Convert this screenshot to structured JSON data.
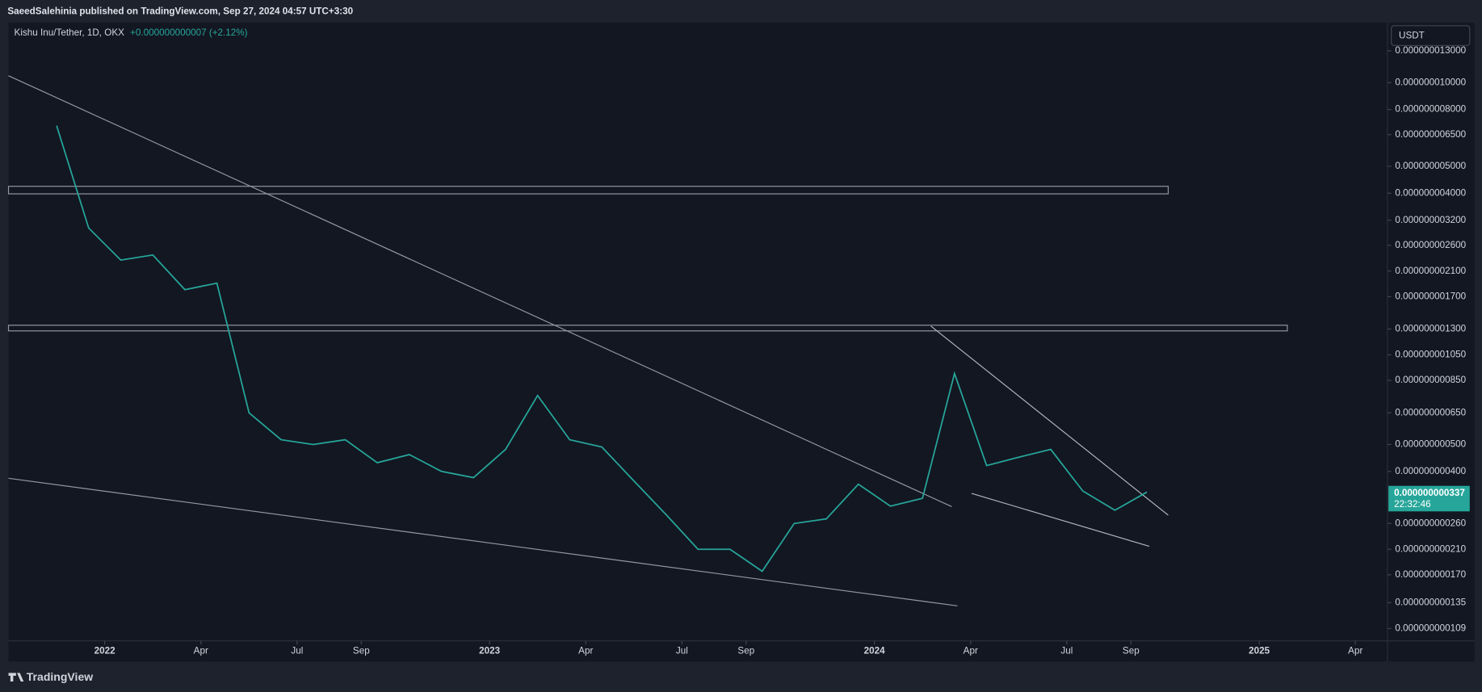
{
  "header": {
    "publisher": "SaeedSalehinia published on TradingView.com, Sep 27, 2024 04:57 UTC+3:30"
  },
  "footer": {
    "brand": "TradingView"
  },
  "chart_data": {
    "type": "line",
    "title": "Kishu Inu/Tether, 1D, OKX",
    "subtitle": "+0.000000000007 (+2.12%)",
    "currency": "USDT",
    "color": "#26a69a",
    "log_scale": true,
    "grid": false,
    "price_tag": {
      "label": "0.000000000337",
      "countdown": "22:32:46"
    },
    "x": [
      "2021-11",
      "2021-12",
      "2022-01",
      "2022-02",
      "2022-03",
      "2022-04",
      "2022-05",
      "2022-06",
      "2022-07",
      "2022-08",
      "2022-09",
      "2022-10",
      "2022-11",
      "2022-12",
      "2023-01",
      "2023-02",
      "2023-03",
      "2023-04",
      "2023-05",
      "2023-06",
      "2023-07",
      "2023-08",
      "2023-09",
      "2023-10",
      "2023-11",
      "2023-12",
      "2024-01",
      "2024-02",
      "2024-03",
      "2024-04",
      "2024-05",
      "2024-06",
      "2024-07",
      "2024-08",
      "2024-09"
    ],
    "values": [
      7e-09,
      3e-09,
      2.3e-09,
      2.4e-09,
      1.8e-09,
      1.9e-09,
      6.5e-10,
      5.2e-10,
      5e-10,
      5.2e-10,
      4.3e-10,
      4.6e-10,
      4e-10,
      3.8e-10,
      4.8e-10,
      7.5e-10,
      5.2e-10,
      4.9e-10,
      3.7e-10,
      2.8e-10,
      2.1e-10,
      2.1e-10,
      1.75e-10,
      2.6e-10,
      2.7e-10,
      3.6e-10,
      3e-10,
      3.2e-10,
      9e-10,
      4.2e-10,
      4.5e-10,
      4.8e-10,
      3.4e-10,
      2.9e-10,
      3.37e-10
    ],
    "xlim": [
      "2021-10",
      "2025-05"
    ],
    "xticks": [
      {
        "value": "2022-01",
        "label": "2022"
      },
      {
        "value": "2022-04",
        "label": "Apr"
      },
      {
        "value": "2022-07",
        "label": "Jul"
      },
      {
        "value": "2022-09",
        "label": "Sep"
      },
      {
        "value": "2023-01",
        "label": "2023"
      },
      {
        "value": "2023-04",
        "label": "Apr"
      },
      {
        "value": "2023-07",
        "label": "Jul"
      },
      {
        "value": "2023-09",
        "label": "Sep"
      },
      {
        "value": "2024-01",
        "label": "2024"
      },
      {
        "value": "2024-04",
        "label": "Apr"
      },
      {
        "value": "2024-07",
        "label": "Jul"
      },
      {
        "value": "2024-09",
        "label": "Sep"
      },
      {
        "value": "2025-01",
        "label": "2025"
      },
      {
        "value": "2025-04",
        "label": "Apr"
      }
    ],
    "ylim": [
      9.84e-11,
      1.64e-08
    ],
    "yticks": [
      {
        "value": 1.3e-08,
        "label": "0.000000013000"
      },
      {
        "value": 1e-08,
        "label": "0.000000010000"
      },
      {
        "value": 8e-09,
        "label": "0.000000008000"
      },
      {
        "value": 6.5e-09,
        "label": "0.000000006500"
      },
      {
        "value": 5e-09,
        "label": "0.000000005000"
      },
      {
        "value": 4e-09,
        "label": "0.000000004000"
      },
      {
        "value": 3.2e-09,
        "label": "0.000000003200"
      },
      {
        "value": 2.6e-09,
        "label": "0.000000002600"
      },
      {
        "value": 2.1e-09,
        "label": "0.000000002100"
      },
      {
        "value": 1.7e-09,
        "label": "0.000000001700"
      },
      {
        "value": 1.3e-09,
        "label": "0.000000001300"
      },
      {
        "value": 1.05e-09,
        "label": "0.000000001050"
      },
      {
        "value": 8.5e-10,
        "label": "0.000000000850"
      },
      {
        "value": 6.5e-10,
        "label": "0.000000000650"
      },
      {
        "value": 5e-10,
        "label": "0.000000000500"
      },
      {
        "value": 4e-10,
        "label": "0.000000000400"
      },
      {
        "value": 2.6e-10,
        "label": "0.000000000260"
      },
      {
        "value": 2.1e-10,
        "label": "0.000000000210"
      },
      {
        "value": 1.7e-10,
        "label": "0.000000000170"
      },
      {
        "value": 1.35e-10,
        "label": "0.000000000135"
      },
      {
        "value": 1.09e-10,
        "label": "0.000000000109"
      }
    ]
  }
}
